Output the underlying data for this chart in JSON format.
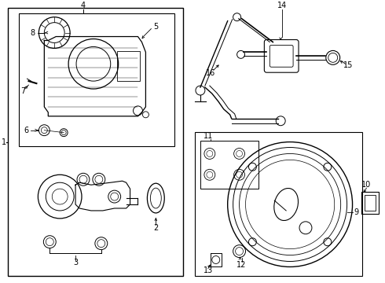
{
  "bg_color": "#ffffff",
  "line_color": "#000000",
  "label_color": "#000000",
  "figsize": [
    4.9,
    3.6
  ],
  "dpi": 100
}
